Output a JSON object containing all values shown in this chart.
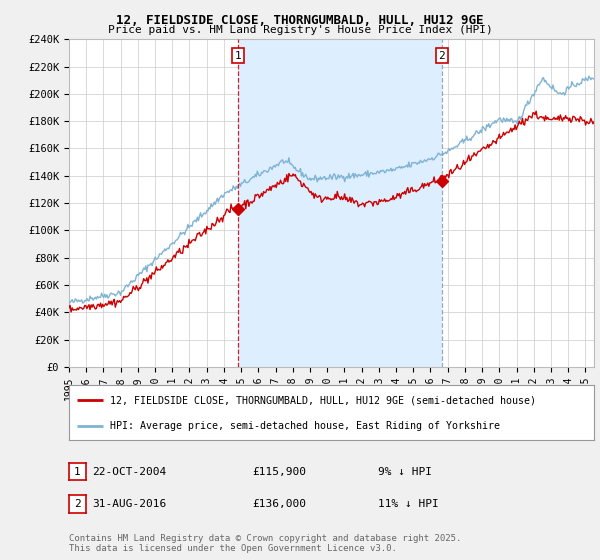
{
  "title": "12, FIELDSIDE CLOSE, THORNGUMBALD, HULL, HU12 9GE",
  "subtitle": "Price paid vs. HM Land Registry's House Price Index (HPI)",
  "legend_line1": "12, FIELDSIDE CLOSE, THORNGUMBALD, HULL, HU12 9GE (semi-detached house)",
  "legend_line2": "HPI: Average price, semi-detached house, East Riding of Yorkshire",
  "footnote": "Contains HM Land Registry data © Crown copyright and database right 2025.\nThis data is licensed under the Open Government Licence v3.0.",
  "transaction1_date": "22-OCT-2004",
  "transaction1_price": "£115,900",
  "transaction1_hpi": "9% ↓ HPI",
  "transaction2_date": "31-AUG-2016",
  "transaction2_price": "£136,000",
  "transaction2_hpi": "11% ↓ HPI",
  "ylim": [
    0,
    240000
  ],
  "yticks": [
    0,
    20000,
    40000,
    60000,
    80000,
    100000,
    120000,
    140000,
    160000,
    180000,
    200000,
    220000,
    240000
  ],
  "ytick_labels": [
    "£0",
    "£20K",
    "£40K",
    "£60K",
    "£80K",
    "£100K",
    "£120K",
    "£140K",
    "£160K",
    "£180K",
    "£200K",
    "£220K",
    "£240K"
  ],
  "xlim_start": 1995.0,
  "xlim_end": 2025.5,
  "bg_color": "#f0f0f0",
  "plot_bg_color": "#ffffff",
  "red_color": "#cc0000",
  "blue_color": "#7fb3d3",
  "vline1_color": "#cc0000",
  "vline2_color": "#8899aa",
  "fill_color": "#ddeeff",
  "transaction1_x": 2004.81,
  "transaction1_y": 115900,
  "transaction2_x": 2016.66,
  "transaction2_y": 136000
}
